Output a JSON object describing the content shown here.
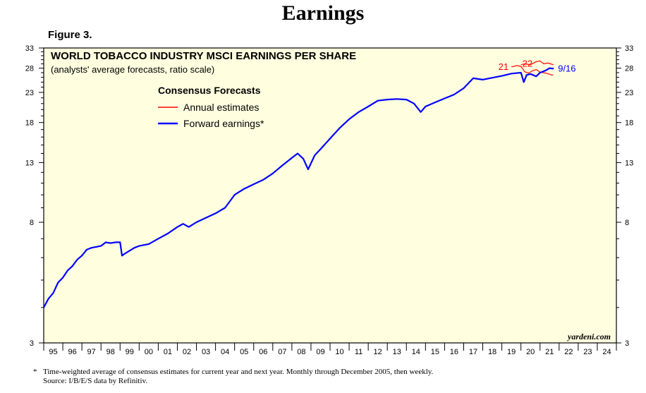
{
  "page": {
    "title": "Earnings",
    "figure_label": "Figure 3.",
    "footnote": "Time-weighted average of consensus estimates for current year and next year. Monthly through December 2005, then weekly.",
    "footnote_marker": "*",
    "source": "Source: I/B/E/S data by Refinitiv."
  },
  "chart_data": {
    "type": "line",
    "title": "WORLD TOBACCO INDUSTRY MSCI EARNINGS PER SHARE",
    "subtitle": "(analysts' average forecasts, ratio scale)",
    "legend_title": "Consensus Forecasts",
    "legend_placement": "top-left",
    "watermark": "yardeni.com",
    "y_scale": "log",
    "ylim": [
      3,
      33
    ],
    "y_ticks": [
      3,
      8,
      13,
      18,
      23,
      28,
      33
    ],
    "x_range": [
      1995,
      2025
    ],
    "x_tick_labels": [
      "95",
      "96",
      "97",
      "98",
      "99",
      "00",
      "01",
      "02",
      "03",
      "04",
      "05",
      "06",
      "07",
      "08",
      "09",
      "10",
      "11",
      "12",
      "13",
      "14",
      "15",
      "16",
      "17",
      "18",
      "19",
      "20",
      "21",
      "22",
      "23",
      "24"
    ],
    "colors": {
      "plot_bg": "#ffffe0",
      "forward": "#0000ff",
      "annual": "#ff0000"
    },
    "series": [
      {
        "name": "Forward earnings*",
        "color": "#0000ff",
        "x": [
          1995.0,
          1995.25,
          1995.5,
          1995.75,
          1996.0,
          1996.25,
          1996.5,
          1996.75,
          1997.0,
          1997.25,
          1997.5,
          1997.75,
          1998.0,
          1998.25,
          1998.5,
          1998.75,
          1999.0,
          1999.1,
          1999.25,
          1999.5,
          1999.75,
          2000.0,
          2000.5,
          2001.0,
          2001.5,
          2002.0,
          2002.3,
          2002.6,
          2003.0,
          2003.5,
          2004.0,
          2004.5,
          2005.0,
          2005.5,
          2006.0,
          2006.5,
          2007.0,
          2007.5,
          2008.0,
          2008.3,
          2008.6,
          2008.85,
          2009.2,
          2009.5,
          2010.0,
          2010.5,
          2011.0,
          2011.5,
          2012.0,
          2012.5,
          2013.0,
          2013.5,
          2014.0,
          2014.4,
          2014.75,
          2015.0,
          2015.5,
          2016.0,
          2016.5,
          2017.0,
          2017.5,
          2018.0,
          2018.5,
          2019.0,
          2019.5,
          2020.0,
          2020.15,
          2020.3,
          2020.5,
          2020.8,
          2021.0,
          2021.3,
          2021.5,
          2021.65,
          2021.72
        ],
        "values": [
          4.0,
          4.3,
          4.5,
          4.9,
          5.1,
          5.4,
          5.6,
          5.9,
          6.1,
          6.4,
          6.5,
          6.55,
          6.6,
          6.8,
          6.75,
          6.8,
          6.8,
          6.1,
          6.2,
          6.35,
          6.5,
          6.6,
          6.7,
          7.0,
          7.3,
          7.7,
          7.9,
          7.7,
          8.0,
          8.3,
          8.6,
          9.0,
          10.0,
          10.5,
          10.9,
          11.3,
          11.9,
          12.7,
          13.5,
          14.0,
          13.4,
          12.3,
          13.8,
          14.5,
          15.8,
          17.2,
          18.5,
          19.6,
          20.5,
          21.5,
          21.7,
          21.8,
          21.7,
          21.0,
          19.6,
          20.5,
          21.2,
          21.9,
          22.6,
          23.8,
          25.8,
          25.5,
          25.9,
          26.3,
          26.8,
          27.0,
          25.0,
          26.5,
          26.7,
          26.2,
          27.0,
          27.5,
          28.0,
          27.9,
          28.0
        ]
      },
      {
        "name": "Annual estimates",
        "color": "#ff0000",
        "segments": [
          {
            "label": "21",
            "x": [
              2019.5,
              2019.8,
              2020.0,
              2020.2,
              2020.4,
              2020.6,
              2020.8,
              2021.0,
              2021.2,
              2021.4,
              2021.6,
              2021.7
            ],
            "values": [
              28.3,
              28.6,
              28.4,
              27.2,
              26.9,
              27.4,
              27.7,
              27.1,
              27.0,
              26.8,
              26.5,
              26.5
            ]
          },
          {
            "label": "22",
            "x": [
              2020.0,
              2020.2,
              2020.5,
              2020.8,
              2021.0,
              2021.2,
              2021.4,
              2021.55,
              2021.7
            ],
            "values": [
              28.8,
              29.0,
              28.8,
              29.5,
              29.7,
              29.0,
              29.2,
              29.0,
              28.8
            ]
          }
        ]
      }
    ],
    "end_label": "9/16",
    "y_label": "",
    "x_label": ""
  }
}
